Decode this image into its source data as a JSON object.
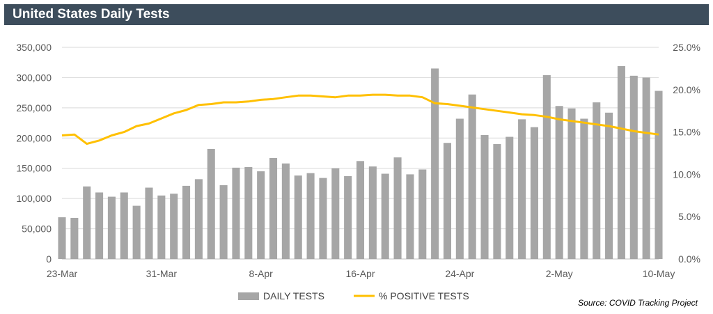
{
  "header": {
    "title": "United States Daily Tests"
  },
  "source": "Source: COVID Tracking Project",
  "colors": {
    "bar": "#a6a6a6",
    "line": "#ffc000",
    "header_bg": "#3d4d5c",
    "grid": "#d9d9d9"
  },
  "chart_data": {
    "type": "bar",
    "x": [
      "23-Mar",
      "24-Mar",
      "25-Mar",
      "26-Mar",
      "27-Mar",
      "28-Mar",
      "29-Mar",
      "30-Mar",
      "31-Mar",
      "1-Apr",
      "2-Apr",
      "3-Apr",
      "4-Apr",
      "5-Apr",
      "6-Apr",
      "7-Apr",
      "8-Apr",
      "9-Apr",
      "10-Apr",
      "11-Apr",
      "12-Apr",
      "13-Apr",
      "14-Apr",
      "15-Apr",
      "16-Apr",
      "17-Apr",
      "18-Apr",
      "19-Apr",
      "20-Apr",
      "21-Apr",
      "22-Apr",
      "23-Apr",
      "24-Apr",
      "25-Apr",
      "26-Apr",
      "27-Apr",
      "28-Apr",
      "29-Apr",
      "30-Apr",
      "1-May",
      "2-May",
      "3-May",
      "4-May",
      "5-May",
      "6-May",
      "7-May",
      "8-May",
      "9-May",
      "10-May"
    ],
    "x_tick_labels": [
      "23-Mar",
      "31-Mar",
      "8-Apr",
      "16-Apr",
      "24-Apr",
      "2-May",
      "10-May"
    ],
    "x_tick_positions": [
      "23-Mar",
      "31-Mar",
      "8-Apr",
      "16-Apr",
      "24-Apr",
      "2-May",
      "10-May"
    ],
    "series": [
      {
        "name": "DAILY TESTS",
        "type": "bar",
        "axis": "left",
        "values": [
          69000,
          68000,
          120000,
          110000,
          103000,
          110000,
          88000,
          118000,
          105000,
          108000,
          121000,
          132000,
          182000,
          122000,
          151000,
          152000,
          145000,
          167000,
          158000,
          138000,
          142000,
          134000,
          150000,
          137000,
          162000,
          153000,
          141000,
          168000,
          140000,
          148000,
          315000,
          192000,
          232000,
          272000,
          205000,
          190000,
          202000,
          231000,
          218000,
          304000,
          253000,
          249000,
          232000,
          259000,
          242000,
          319000,
          303000,
          300000,
          278000
        ]
      },
      {
        "name": "% POSITIVE TESTS",
        "type": "line",
        "axis": "right",
        "values": [
          14.6,
          14.7,
          13.6,
          14.0,
          14.6,
          15.0,
          15.7,
          16.0,
          16.6,
          17.2,
          17.6,
          18.2,
          18.3,
          18.5,
          18.5,
          18.6,
          18.8,
          18.9,
          19.1,
          19.3,
          19.3,
          19.2,
          19.1,
          19.3,
          19.3,
          19.4,
          19.4,
          19.3,
          19.3,
          19.1,
          18.4,
          18.3,
          18.1,
          17.9,
          17.7,
          17.5,
          17.3,
          17.1,
          17.0,
          16.8,
          16.5,
          16.3,
          16.1,
          15.9,
          15.7,
          15.4,
          15.1,
          14.9,
          14.7
        ]
      }
    ],
    "y_left": {
      "min": 0,
      "max": 350000,
      "ticks": [
        "0",
        "50,000",
        "100,000",
        "150,000",
        "200,000",
        "250,000",
        "300,000",
        "350,000"
      ]
    },
    "y_right": {
      "min": 0,
      "max": 25,
      "ticks": [
        "0.0%",
        "5.0%",
        "10.0%",
        "15.0%",
        "20.0%",
        "25.0%"
      ]
    },
    "grid": true,
    "legend_position": "bottom"
  }
}
